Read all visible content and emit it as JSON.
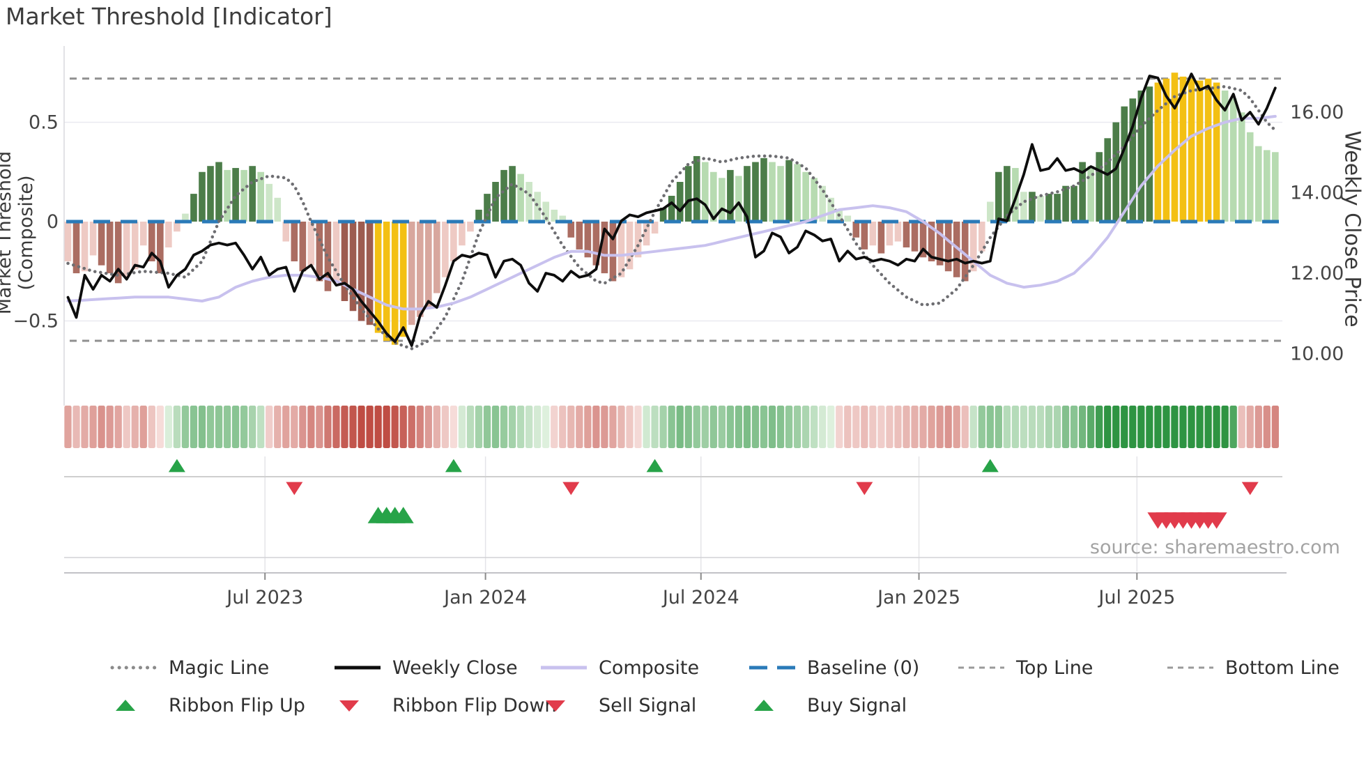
{
  "title": "Market Threshold [Indicator]",
  "source_note": "source: sharemaestro.com",
  "axes": {
    "left_label": "Market Threshold (Composite)",
    "right_label": "Weekly Close Price",
    "left_ticks": [
      {
        "label": "0.5",
        "value": 0.5
      },
      {
        "label": "0",
        "value": 0.0
      },
      {
        "label": "−0.5",
        "value": -0.5
      }
    ],
    "right_ticks": [
      {
        "label": "16.00",
        "price": 16.0
      },
      {
        "label": "14.00",
        "price": 14.0
      },
      {
        "label": "12.00",
        "price": 12.0
      },
      {
        "label": "10.00",
        "price": 10.0
      }
    ],
    "x_ticks": [
      {
        "label": "Jul 2023",
        "week": 23.5
      },
      {
        "label": "Jan 2024",
        "week": 49.8
      },
      {
        "label": "Jul 2024",
        "week": 75.5
      },
      {
        "label": "Jan 2025",
        "week": 101.5
      },
      {
        "label": "Jul 2025",
        "week": 127.5
      }
    ]
  },
  "legend": {
    "row1": [
      {
        "label": "Magic Line",
        "swatch": "dotted-gray-line"
      },
      {
        "label": "Weekly Close",
        "swatch": "solid-black-line"
      },
      {
        "label": "Composite",
        "swatch": "solid-lavender-line"
      },
      {
        "label": "Baseline (0)",
        "swatch": "dashed-blue-line"
      },
      {
        "label": "Top Line",
        "swatch": "dashed-gray-line"
      },
      {
        "label": "Bottom Line",
        "swatch": "dashed-gray-line"
      }
    ],
    "row2": [
      {
        "label": "Ribbon Flip Up",
        "swatch": "green-up-triangle"
      },
      {
        "label": "Ribbon Flip Down",
        "swatch": "red-down-triangle"
      },
      {
        "label": "Sell Signal",
        "swatch": "red-down-triangle"
      },
      {
        "label": "Buy Signal",
        "swatch": "green-up-triangle"
      }
    ]
  },
  "colors": {
    "baseline_blue": "#2a7ab8",
    "weekly_close_black": "#0d0d0d",
    "composite_lavender": "#c8c1ee",
    "magic_gray": "#6e6e72",
    "ref_dash_gray": "#909090",
    "grid_gray": "#e9e9f0",
    "panel_line": "#d2d2d6",
    "axis_spine": "#c2c2c6",
    "tick_text": "#444444",
    "gold_highlight": "#f3c013",
    "bar_green_dark": "#4c7d49",
    "bar_green_light": "#b7dbb1",
    "bar_green_pale": "#cde6c8",
    "bar_red_dark": "#9d5c50",
    "bar_red_mid": "#ab6d62",
    "bar_red_light": "#eecac4",
    "ribbon_green_hi": "#2e9442",
    "ribbon_green_lo": "#e8f5e6",
    "ribbon_red_hi": "#bf4d44",
    "ribbon_red_lo": "#fbeae8",
    "signal_green": "#27a348",
    "signal_red": "#e13b4b"
  },
  "chart_data": {
    "type": "bar",
    "x_unit": "week",
    "weeks": 145,
    "x_range_note": "weekly data from late Jan 2023 to late Oct 2025",
    "ylim_composite": [
      -0.8,
      0.85
    ],
    "ylim_price": [
      9.5,
      17.6
    ],
    "reference_lines": {
      "baseline": 0.0,
      "top_line": 0.72,
      "bottom_line": -0.6
    },
    "gold_highlight_week_ranges": [
      [
        37,
        40
      ],
      [
        130,
        137
      ]
    ],
    "threshold_bars": [
      -0.2,
      -0.26,
      -0.25,
      -0.17,
      -0.22,
      -0.26,
      -0.31,
      -0.28,
      -0.24,
      -0.12,
      -0.2,
      -0.26,
      -0.13,
      -0.05,
      0.04,
      0.14,
      0.25,
      0.28,
      0.3,
      0.26,
      0.27,
      0.26,
      0.28,
      0.25,
      0.19,
      0.12,
      -0.1,
      -0.2,
      -0.25,
      -0.22,
      -0.3,
      -0.35,
      -0.3,
      -0.4,
      -0.45,
      -0.5,
      -0.52,
      -0.56,
      -0.6,
      -0.62,
      -0.58,
      -0.52,
      -0.48,
      -0.43,
      -0.36,
      -0.28,
      -0.2,
      -0.12,
      -0.05,
      0.06,
      0.14,
      0.2,
      0.26,
      0.28,
      0.24,
      0.2,
      0.15,
      0.1,
      0.06,
      0.03,
      -0.08,
      -0.14,
      -0.18,
      -0.22,
      -0.26,
      -0.3,
      -0.28,
      -0.24,
      -0.18,
      -0.12,
      -0.06,
      0.07,
      0.13,
      0.2,
      0.28,
      0.33,
      0.3,
      0.25,
      0.22,
      0.26,
      0.23,
      0.28,
      0.3,
      0.32,
      0.3,
      0.28,
      0.31,
      0.29,
      0.25,
      0.22,
      0.18,
      0.12,
      0.06,
      0.03,
      -0.08,
      -0.14,
      -0.12,
      -0.16,
      -0.12,
      -0.1,
      -0.13,
      -0.15,
      -0.18,
      -0.2,
      -0.22,
      -0.25,
      -0.28,
      -0.3,
      -0.25,
      -0.15,
      0.1,
      0.25,
      0.28,
      0.27,
      0.15,
      0.15,
      0.13,
      0.14,
      0.14,
      0.18,
      0.18,
      0.3,
      0.28,
      0.35,
      0.42,
      0.5,
      0.58,
      0.62,
      0.66,
      0.68,
      0.7,
      0.72,
      0.75,
      0.73,
      0.72,
      0.71,
      0.72,
      0.7,
      0.66,
      0.62,
      0.55,
      0.45,
      0.38,
      0.36,
      0.35
    ],
    "weekly_close": [
      11.4,
      10.9,
      11.95,
      11.6,
      11.95,
      11.8,
      12.1,
      11.85,
      12.2,
      12.15,
      12.5,
      12.3,
      11.65,
      11.95,
      12.1,
      12.45,
      12.55,
      12.7,
      12.75,
      12.7,
      12.75,
      12.45,
      12.1,
      12.4,
      11.95,
      12.1,
      12.15,
      11.55,
      12.05,
      12.2,
      11.85,
      12.0,
      11.7,
      11.75,
      11.6,
      11.3,
      11.05,
      10.8,
      10.5,
      10.3,
      10.65,
      10.2,
      10.95,
      11.3,
      11.15,
      11.7,
      12.3,
      12.45,
      12.4,
      12.5,
      12.45,
      11.9,
      12.3,
      12.35,
      12.2,
      11.75,
      11.55,
      12.0,
      11.95,
      11.8,
      12.05,
      11.9,
      11.95,
      12.1,
      13.1,
      12.85,
      13.3,
      13.45,
      13.4,
      13.5,
      13.55,
      13.6,
      13.75,
      13.55,
      13.8,
      13.85,
      13.7,
      13.35,
      13.6,
      13.5,
      13.75,
      13.4,
      12.4,
      12.55,
      13.0,
      12.9,
      12.5,
      12.65,
      13.05,
      12.95,
      12.8,
      12.85,
      12.3,
      12.55,
      12.35,
      12.4,
      12.3,
      12.35,
      12.3,
      12.2,
      12.35,
      12.3,
      12.6,
      12.4,
      12.35,
      12.3,
      12.35,
      12.25,
      12.3,
      12.25,
      12.3,
      13.35,
      13.3,
      13.85,
      14.45,
      15.2,
      14.55,
      14.6,
      14.85,
      14.55,
      14.6,
      14.5,
      14.65,
      14.55,
      14.45,
      14.6,
      15.1,
      15.65,
      16.35,
      16.9,
      16.85,
      16.4,
      16.1,
      16.5,
      16.95,
      16.55,
      16.65,
      16.3,
      16.05,
      16.45,
      15.8,
      16.0,
      15.7,
      16.1,
      16.6
    ],
    "ribbon_heatmap": [
      -0.25,
      -0.17,
      -0.22,
      -0.26,
      -0.31,
      -0.28,
      -0.24,
      -0.12,
      -0.2,
      -0.26,
      -0.13,
      -0.05,
      0.04,
      0.14,
      0.25,
      0.28,
      0.3,
      0.26,
      0.27,
      0.26,
      0.28,
      0.25,
      0.19,
      0.12,
      -0.1,
      -0.2,
      -0.25,
      -0.22,
      -0.3,
      -0.35,
      -0.3,
      -0.4,
      -0.45,
      -0.5,
      -0.52,
      -0.56,
      -0.6,
      -0.62,
      -0.58,
      -0.52,
      -0.48,
      -0.43,
      -0.36,
      -0.28,
      -0.2,
      -0.12,
      -0.05,
      0.06,
      0.14,
      0.2,
      0.26,
      0.28,
      0.24,
      0.2,
      0.15,
      0.1,
      0.06,
      0.03,
      -0.08,
      -0.14,
      -0.18,
      -0.22,
      -0.26,
      -0.3,
      -0.28,
      -0.24,
      -0.18,
      -0.12,
      -0.06,
      0.07,
      0.13,
      0.2,
      0.28,
      0.33,
      0.3,
      0.25,
      0.22,
      0.26,
      0.23,
      0.28,
      0.3,
      0.32,
      0.3,
      0.28,
      0.31,
      0.29,
      0.25,
      0.22,
      0.18,
      0.12,
      0.06,
      0.03,
      -0.08,
      -0.14,
      -0.12,
      -0.16,
      -0.12,
      -0.1,
      -0.13,
      -0.15,
      -0.18,
      -0.2,
      -0.22,
      -0.25,
      -0.28,
      -0.3,
      -0.25,
      -0.15,
      0.1,
      0.25,
      0.28,
      0.27,
      0.15,
      0.15,
      0.13,
      0.14,
      0.14,
      0.18,
      0.18,
      0.3,
      0.28,
      0.35,
      0.42,
      0.5,
      0.58,
      0.62,
      0.66,
      0.68,
      0.7,
      0.72,
      0.75,
      0.73,
      0.72,
      0.71,
      0.72,
      0.7,
      0.66,
      0.62,
      0.55,
      0.45,
      -0.15,
      -0.22,
      -0.28,
      -0.32,
      -0.35
    ],
    "composite_line_anchors": [
      [
        0,
        -0.4
      ],
      [
        4,
        -0.39
      ],
      [
        8,
        -0.38
      ],
      [
        12,
        -0.38
      ],
      [
        14,
        -0.39
      ],
      [
        16,
        -0.4
      ],
      [
        18,
        -0.38
      ],
      [
        20,
        -0.33
      ],
      [
        22,
        -0.3
      ],
      [
        24,
        -0.28
      ],
      [
        26,
        -0.27
      ],
      [
        28,
        -0.27
      ],
      [
        30,
        -0.28
      ],
      [
        32,
        -0.3
      ],
      [
        34,
        -0.34
      ],
      [
        36,
        -0.38
      ],
      [
        38,
        -0.42
      ],
      [
        40,
        -0.44
      ],
      [
        42,
        -0.44
      ],
      [
        44,
        -0.43
      ],
      [
        46,
        -0.41
      ],
      [
        48,
        -0.38
      ],
      [
        50,
        -0.34
      ],
      [
        52,
        -0.3
      ],
      [
        54,
        -0.26
      ],
      [
        56,
        -0.22
      ],
      [
        58,
        -0.18
      ],
      [
        60,
        -0.15
      ],
      [
        62,
        -0.15
      ],
      [
        64,
        -0.17
      ],
      [
        66,
        -0.17
      ],
      [
        68,
        -0.16
      ],
      [
        70,
        -0.15
      ],
      [
        72,
        -0.14
      ],
      [
        74,
        -0.13
      ],
      [
        76,
        -0.12
      ],
      [
        78,
        -0.1
      ],
      [
        80,
        -0.08
      ],
      [
        82,
        -0.06
      ],
      [
        84,
        -0.04
      ],
      [
        86,
        -0.02
      ],
      [
        88,
        0.0
      ],
      [
        90,
        0.03
      ],
      [
        92,
        0.06
      ],
      [
        94,
        0.07
      ],
      [
        96,
        0.08
      ],
      [
        98,
        0.07
      ],
      [
        100,
        0.05
      ],
      [
        102,
        0.0
      ],
      [
        104,
        -0.06
      ],
      [
        106,
        -0.13
      ],
      [
        108,
        -0.2
      ],
      [
        110,
        -0.27
      ],
      [
        112,
        -0.31
      ],
      [
        114,
        -0.33
      ],
      [
        116,
        -0.32
      ],
      [
        118,
        -0.3
      ],
      [
        120,
        -0.26
      ],
      [
        122,
        -0.18
      ],
      [
        124,
        -0.08
      ],
      [
        126,
        0.05
      ],
      [
        128,
        0.18
      ],
      [
        130,
        0.28
      ],
      [
        132,
        0.36
      ],
      [
        134,
        0.43
      ],
      [
        136,
        0.47
      ],
      [
        138,
        0.5
      ],
      [
        140,
        0.52
      ],
      [
        142,
        0.52
      ],
      [
        144,
        0.53
      ]
    ],
    "magic_line_anchors": [
      [
        0,
        -0.21
      ],
      [
        3,
        -0.25
      ],
      [
        6,
        -0.27
      ],
      [
        9,
        -0.25
      ],
      [
        12,
        -0.26
      ],
      [
        14,
        -0.28
      ],
      [
        16,
        -0.2
      ],
      [
        18,
        0.0
      ],
      [
        20,
        0.13
      ],
      [
        22,
        0.2
      ],
      [
        24,
        0.23
      ],
      [
        26,
        0.22
      ],
      [
        27,
        0.18
      ],
      [
        28,
        0.1
      ],
      [
        29,
        0.0
      ],
      [
        31,
        -0.18
      ],
      [
        33,
        -0.32
      ],
      [
        35,
        -0.44
      ],
      [
        37,
        -0.54
      ],
      [
        39,
        -0.61
      ],
      [
        41,
        -0.64
      ],
      [
        43,
        -0.6
      ],
      [
        45,
        -0.48
      ],
      [
        47,
        -0.3
      ],
      [
        49,
        -0.06
      ],
      [
        51,
        0.12
      ],
      [
        53,
        0.19
      ],
      [
        55,
        0.14
      ],
      [
        57,
        0.02
      ],
      [
        59,
        -0.12
      ],
      [
        61,
        -0.23
      ],
      [
        63,
        -0.3
      ],
      [
        64,
        -0.31
      ],
      [
        66,
        -0.26
      ],
      [
        68,
        -0.12
      ],
      [
        70,
        0.05
      ],
      [
        72,
        0.2
      ],
      [
        74,
        0.29
      ],
      [
        76,
        0.32
      ],
      [
        78,
        0.3
      ],
      [
        80,
        0.32
      ],
      [
        82,
        0.33
      ],
      [
        84,
        0.33
      ],
      [
        86,
        0.32
      ],
      [
        88,
        0.27
      ],
      [
        90,
        0.16
      ],
      [
        92,
        0.03
      ],
      [
        94,
        -0.11
      ],
      [
        96,
        -0.22
      ],
      [
        98,
        -0.31
      ],
      [
        100,
        -0.38
      ],
      [
        102,
        -0.42
      ],
      [
        104,
        -0.41
      ],
      [
        106,
        -0.34
      ],
      [
        108,
        -0.22
      ],
      [
        110,
        -0.08
      ],
      [
        112,
        0.03
      ],
      [
        114,
        0.1
      ],
      [
        116,
        0.13
      ],
      [
        118,
        0.15
      ],
      [
        120,
        0.18
      ],
      [
        122,
        0.23
      ],
      [
        124,
        0.3
      ],
      [
        126,
        0.38
      ],
      [
        128,
        0.48
      ],
      [
        130,
        0.56
      ],
      [
        132,
        0.63
      ],
      [
        134,
        0.66
      ],
      [
        136,
        0.67
      ],
      [
        138,
        0.68
      ],
      [
        140,
        0.66
      ],
      [
        141,
        0.62
      ],
      [
        142,
        0.56
      ],
      [
        143,
        0.5
      ],
      [
        144,
        0.46
      ]
    ],
    "signals": {
      "ribbon_flip_up_weeks": [
        13,
        46,
        70,
        110
      ],
      "ribbon_flip_down_weeks": [
        27,
        60,
        95,
        141
      ],
      "buy_signal_weeks": [
        37,
        38,
        39,
        40
      ],
      "sell_signal_weeks": [
        130,
        131,
        132,
        133,
        134,
        135,
        136,
        137
      ]
    }
  }
}
